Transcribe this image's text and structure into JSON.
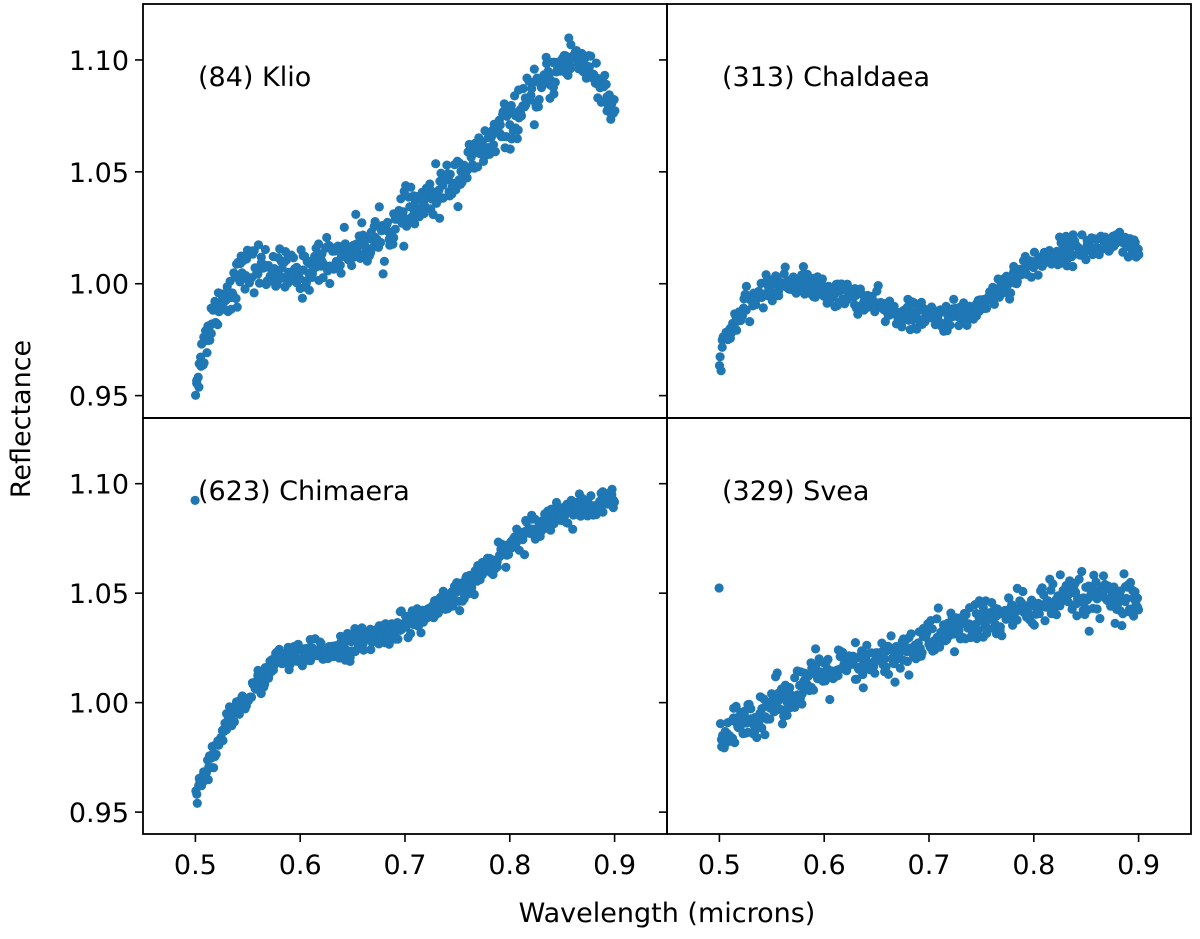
{
  "figure": {
    "xlabel": "Wavelength (microns)",
    "ylabel": "Reflectance",
    "marker_color": "#1f77b4"
  },
  "chart_data": [
    {
      "type": "scatter",
      "title": "(84) Klio",
      "xlabel": "Wavelength (microns)",
      "ylabel": "Reflectance",
      "xlim": [
        0.45,
        0.95
      ],
      "ylim": [
        0.94,
        1.125
      ],
      "xticks": [
        "0.5",
        "0.6",
        "0.7",
        "0.8",
        "0.9"
      ],
      "yticks": [
        "0.95",
        "1.00",
        "1.05",
        "1.10"
      ],
      "x_range": [
        0.5,
        0.9
      ],
      "series": [
        {
          "name": "(84) Klio",
          "trend": [
            [
              0.5,
              0.955
            ],
            [
              0.51,
              0.975
            ],
            [
              0.52,
              0.99
            ],
            [
              0.53,
              0.995
            ],
            [
              0.545,
              1.005
            ],
            [
              0.56,
              1.008
            ],
            [
              0.58,
              1.005
            ],
            [
              0.6,
              1.004
            ],
            [
              0.62,
              1.01
            ],
            [
              0.65,
              1.016
            ],
            [
              0.68,
              1.022
            ],
            [
              0.7,
              1.03
            ],
            [
              0.73,
              1.04
            ],
            [
              0.76,
              1.053
            ],
            [
              0.79,
              1.067
            ],
            [
              0.82,
              1.082
            ],
            [
              0.84,
              1.093
            ],
            [
              0.855,
              1.1
            ],
            [
              0.865,
              1.102
            ],
            [
              0.875,
              1.097
            ],
            [
              0.885,
              1.09
            ],
            [
              0.89,
              1.083
            ],
            [
              0.9,
              1.075
            ]
          ],
          "scatter": 0.005
        }
      ]
    },
    {
      "type": "scatter",
      "title": "(313) Chaldaea",
      "xlabel": "Wavelength (microns)",
      "ylabel": "Reflectance",
      "xlim": [
        0.45,
        0.95
      ],
      "ylim": [
        0.94,
        1.125
      ],
      "xticks": [
        "0.5",
        "0.6",
        "0.7",
        "0.8",
        "0.9"
      ],
      "yticks": [
        "0.95",
        "1.00",
        "1.05",
        "1.10"
      ],
      "x_range": [
        0.5,
        0.9
      ],
      "series": [
        {
          "name": "(313) Chaldaea",
          "trend": [
            [
              0.5,
              0.968
            ],
            [
              0.51,
              0.978
            ],
            [
              0.52,
              0.987
            ],
            [
              0.54,
              0.996
            ],
            [
              0.56,
              1.0
            ],
            [
              0.575,
              1.001
            ],
            [
              0.6,
              0.997
            ],
            [
              0.63,
              0.994
            ],
            [
              0.66,
              0.988
            ],
            [
              0.69,
              0.985
            ],
            [
              0.72,
              0.985
            ],
            [
              0.74,
              0.987
            ],
            [
              0.76,
              0.995
            ],
            [
              0.78,
              1.003
            ],
            [
              0.8,
              1.009
            ],
            [
              0.82,
              1.013
            ],
            [
              0.84,
              1.016
            ],
            [
              0.86,
              1.017
            ],
            [
              0.88,
              1.018
            ],
            [
              0.89,
              1.016
            ],
            [
              0.9,
              1.013
            ]
          ],
          "scatter": 0.003
        }
      ]
    },
    {
      "type": "scatter",
      "title": "(623) Chimaera",
      "xlabel": "Wavelength (microns)",
      "ylabel": "Reflectance",
      "xlim": [
        0.45,
        0.95
      ],
      "ylim": [
        0.94,
        1.13
      ],
      "xticks": [
        "0.5",
        "0.6",
        "0.7",
        "0.8",
        "0.9"
      ],
      "yticks": [
        "0.95",
        "1.00",
        "1.05",
        "1.10"
      ],
      "x_range": [
        0.5,
        0.9
      ],
      "series": [
        {
          "name": "(623) Chimaera",
          "trend": [
            [
              0.5,
              0.958
            ],
            [
              0.51,
              0.966
            ],
            [
              0.52,
              0.978
            ],
            [
              0.53,
              0.992
            ],
            [
              0.55,
              1.002
            ],
            [
              0.57,
              1.015
            ],
            [
              0.58,
              1.02
            ],
            [
              0.6,
              1.021
            ],
            [
              0.62,
              1.023
            ],
            [
              0.65,
              1.027
            ],
            [
              0.68,
              1.032
            ],
            [
              0.7,
              1.036
            ],
            [
              0.72,
              1.04
            ],
            [
              0.74,
              1.045
            ],
            [
              0.76,
              1.053
            ],
            [
              0.78,
              1.063
            ],
            [
              0.8,
              1.072
            ],
            [
              0.82,
              1.08
            ],
            [
              0.84,
              1.085
            ],
            [
              0.86,
              1.088
            ],
            [
              0.88,
              1.089
            ],
            [
              0.9,
              1.093
            ]
          ],
          "scatter": 0.003
        }
      ]
    },
    {
      "type": "scatter",
      "title": "(329) Svea",
      "xlabel": "Wavelength (microns)",
      "ylabel": "Reflectance",
      "xlim": [
        0.45,
        0.95
      ],
      "ylim": [
        0.94,
        1.13
      ],
      "xticks": [
        "0.5",
        "0.6",
        "0.7",
        "0.8",
        "0.9"
      ],
      "yticks": [
        "0.95",
        "1.00",
        "1.05",
        "1.10"
      ],
      "x_range": [
        0.5,
        0.9
      ],
      "series": [
        {
          "name": "(329) Svea",
          "trend": [
            [
              0.5,
              0.982
            ],
            [
              0.52,
              0.99
            ],
            [
              0.54,
              0.996
            ],
            [
              0.56,
              1.002
            ],
            [
              0.58,
              1.008
            ],
            [
              0.6,
              1.013
            ],
            [
              0.62,
              1.016
            ],
            [
              0.64,
              1.017
            ],
            [
              0.66,
              1.02
            ],
            [
              0.68,
              1.024
            ],
            [
              0.7,
              1.029
            ],
            [
              0.72,
              1.033
            ],
            [
              0.74,
              1.036
            ],
            [
              0.76,
              1.038
            ],
            [
              0.78,
              1.041
            ],
            [
              0.8,
              1.044
            ],
            [
              0.82,
              1.046
            ],
            [
              0.84,
              1.047
            ],
            [
              0.86,
              1.048
            ],
            [
              0.88,
              1.046
            ],
            [
              0.9,
              1.045
            ]
          ],
          "scatter": 0.005
        }
      ]
    }
  ]
}
